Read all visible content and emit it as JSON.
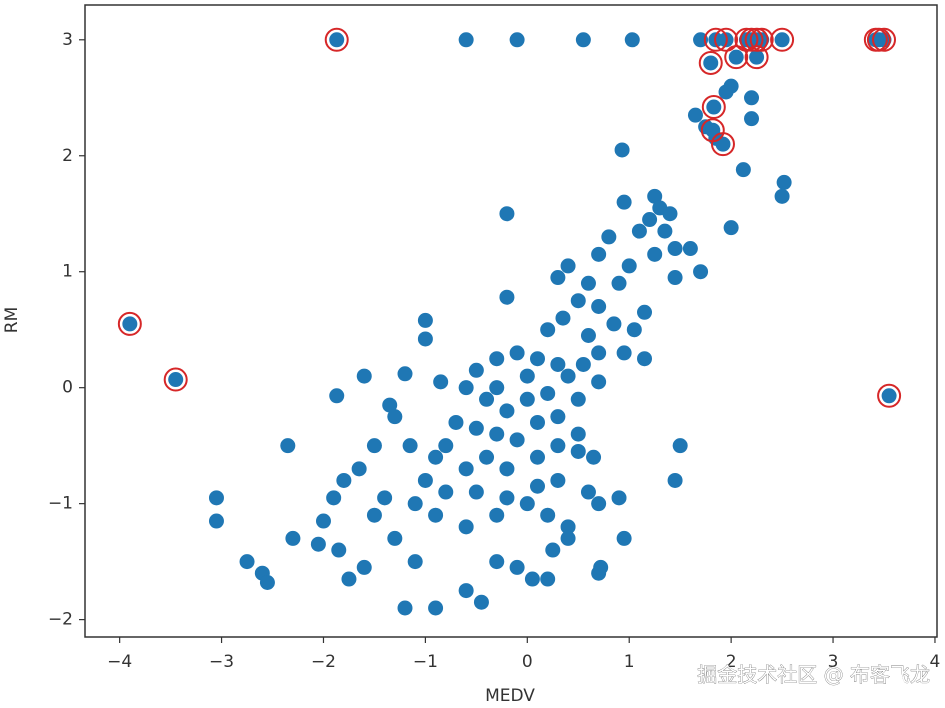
{
  "chart_data": {
    "type": "scatter",
    "x_label": "MEDV",
    "y_label": "RM",
    "xlim": [
      -4.34,
      4.02
    ],
    "ylim": [
      -2.15,
      3.3
    ],
    "xticks": [
      {
        "value": -4,
        "label": "−4"
      },
      {
        "value": -3,
        "label": "−3"
      },
      {
        "value": -2,
        "label": "−2"
      },
      {
        "value": -1,
        "label": "−1"
      },
      0,
      1,
      2,
      3,
      4
    ],
    "yticks": [
      {
        "value": -2,
        "label": "−2"
      },
      {
        "value": -1,
        "label": "−1"
      },
      0,
      1,
      2,
      3
    ],
    "annotation": "掘金技术社区 @ 布客飞龙",
    "series": [
      {
        "color": "#1f77b4",
        "facecolor": "#1f77b4",
        "x": [
          -1.87,
          -0.6,
          -0.1,
          0.55,
          1.03,
          1.7,
          2.15,
          2.25,
          2.5,
          1.85,
          1.95,
          3.45,
          2.25,
          1.8,
          2.05,
          2.0,
          1.95,
          2.2,
          2.2,
          1.65,
          1.75,
          1.85,
          1.83,
          1.82,
          1.92,
          0.93,
          2.12,
          2.52,
          2.5,
          2.0,
          1.25,
          1.3,
          1.4,
          1.2,
          1.35,
          1.45,
          1.1,
          0.95,
          0.8,
          1.25,
          1.6,
          1.7,
          1.45,
          1.0,
          0.7,
          0.9,
          0.6,
          0.4,
          0.3,
          0.5,
          0.7,
          0.85,
          1.05,
          1.15,
          0.95,
          1.15,
          0.6,
          0.35,
          0.2,
          -0.2,
          -0.2,
          -1.0,
          -1.0,
          -0.85,
          -1.6,
          -1.35,
          -1.87,
          -1.15,
          -1.3,
          -1.2,
          0.7,
          0.4,
          0.3,
          0.1,
          -0.1,
          -0.3,
          -0.5,
          -0.6,
          -0.4,
          -0.2,
          0.0,
          0.2,
          0.5,
          0.7,
          -0.7,
          -0.5,
          -0.3,
          -0.1,
          0.1,
          0.3,
          -0.8,
          -0.9,
          -0.6,
          -0.4,
          -0.2,
          0.1,
          0.3,
          0.5,
          0.65,
          -1.0,
          -0.8,
          -0.5,
          -0.2,
          0.1,
          0.3,
          0.6,
          0.7,
          -1.1,
          -0.9,
          -0.6,
          -0.3,
          0.0,
          0.2,
          0.4,
          0.9,
          -1.4,
          -1.5,
          -1.3,
          -1.8,
          -1.9,
          -2.0,
          -2.05,
          -1.85,
          -1.6,
          -1.75,
          -2.35,
          -2.3,
          -2.6,
          -2.55,
          -2.75,
          -3.05,
          -3.05,
          -1.5,
          -1.65,
          -1.1,
          -1.2,
          -0.9,
          -0.45,
          -0.6,
          -0.1,
          -0.3,
          0.05,
          0.2,
          0.25,
          0.4,
          0.7,
          0.72,
          0.95,
          1.5,
          1.45,
          0.5,
          0.55,
          0.0,
          -0.3,
          -3.9,
          -3.45,
          3.55,
          3.5,
          3.42,
          2.2,
          2.3
        ],
        "values": [
          3,
          3,
          3,
          3,
          3,
          3,
          3,
          3,
          3,
          3,
          3,
          3,
          2.85,
          2.8,
          2.85,
          2.6,
          2.55,
          2.5,
          2.32,
          2.35,
          2.25,
          2.15,
          2.42,
          2.22,
          2.1,
          2.05,
          1.88,
          1.77,
          1.65,
          1.38,
          1.65,
          1.55,
          1.5,
          1.45,
          1.35,
          1.2,
          1.35,
          1.6,
          1.3,
          1.15,
          1.2,
          1.0,
          0.95,
          1.05,
          1.15,
          0.9,
          0.9,
          1.05,
          0.95,
          0.75,
          0.7,
          0.55,
          0.5,
          0.65,
          0.3,
          0.25,
          0.45,
          0.6,
          0.5,
          1.5,
          0.78,
          0.58,
          0.42,
          0.05,
          0.1,
          -0.15,
          -0.07,
          -0.5,
          -0.25,
          0.12,
          0.3,
          0.1,
          0.2,
          0.25,
          0.3,
          0.25,
          0.15,
          0.0,
          -0.1,
          -0.2,
          -0.1,
          -0.05,
          -0.1,
          0.05,
          -0.3,
          -0.35,
          -0.4,
          -0.45,
          -0.3,
          -0.25,
          -0.5,
          -0.6,
          -0.7,
          -0.6,
          -0.7,
          -0.6,
          -0.5,
          -0.55,
          -0.6,
          -0.8,
          -0.9,
          -0.9,
          -0.95,
          -0.85,
          -0.8,
          -0.9,
          -1.0,
          -1.0,
          -1.1,
          -1.2,
          -1.1,
          -1.0,
          -1.1,
          -1.2,
          -0.95,
          -0.95,
          -1.1,
          -1.3,
          -0.8,
          -0.95,
          -1.15,
          -1.35,
          -1.4,
          -1.55,
          -1.65,
          -0.5,
          -1.3,
          -1.6,
          -1.68,
          -1.5,
          -0.95,
          -1.15,
          -0.5,
          -0.7,
          -1.5,
          -1.9,
          -1.9,
          -1.85,
          -1.75,
          -1.55,
          -1.5,
          -1.65,
          -1.65,
          -1.4,
          -1.3,
          -1.6,
          -1.55,
          -1.3,
          -0.5,
          -0.8,
          -0.4,
          0.2,
          0.1,
          0.0,
          0.55,
          0.07,
          -0.07,
          3,
          3,
          3,
          3
        ]
      },
      {
        "color": "#d62728",
        "facecolor": "none",
        "x": [
          -1.87,
          -3.9,
          -3.45,
          3.55,
          2.15,
          2.2,
          2.25,
          2.3,
          2.5,
          2.25,
          1.85,
          1.95,
          1.8,
          2.05,
          1.83,
          1.82,
          1.92,
          3.45,
          3.5,
          3.42
        ],
        "values": [
          3,
          0.55,
          0.07,
          -0.07,
          3,
          3,
          3,
          3,
          3,
          2.85,
          3,
          3,
          2.8,
          2.85,
          2.42,
          2.22,
          2.1,
          3,
          3,
          3
        ]
      }
    ]
  }
}
